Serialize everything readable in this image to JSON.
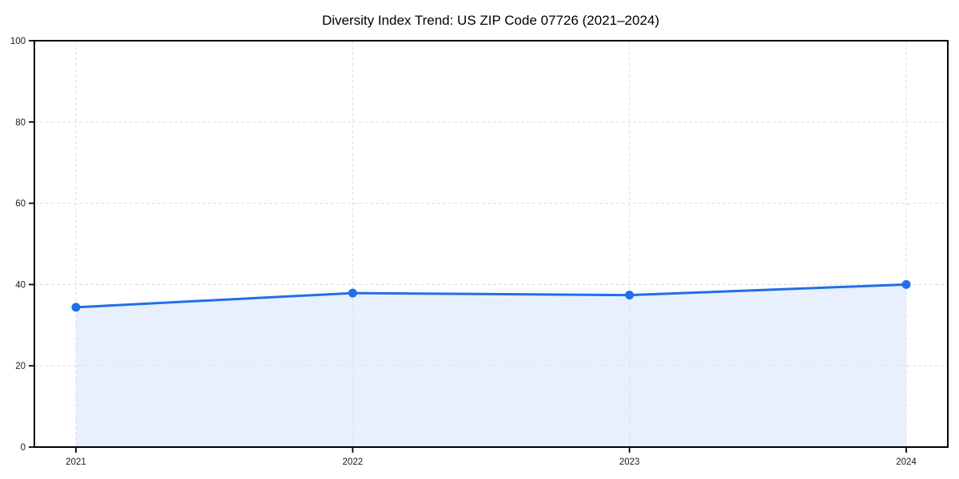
{
  "figure": {
    "background": "#ffffff"
  },
  "chart_data": {
    "type": "area",
    "title": "Diversity Index Trend: US ZIP Code 07726 (2021–2024)",
    "series_name": "Diversity Index",
    "categories": [
      "2021",
      "2022",
      "2023",
      "2024"
    ],
    "values": [
      34.4,
      37.9,
      37.4,
      40.0
    ],
    "xlabel": "",
    "ylabel": "",
    "ylim": [
      0,
      100
    ],
    "yticks": [
      0,
      20,
      40,
      60,
      80,
      100
    ],
    "grid": true,
    "grid_style": "dashed",
    "legend": "none",
    "marker_style": "circle",
    "colors": {
      "line": "#1f6fe8",
      "marker": "#1f6fe8",
      "fill": "#1f6fe8",
      "fill_opacity": 0.1,
      "grid": "#e2e2e2",
      "spine": "#000000",
      "tick_text": "#1a1a1a",
      "title_text": "#000000"
    }
  }
}
